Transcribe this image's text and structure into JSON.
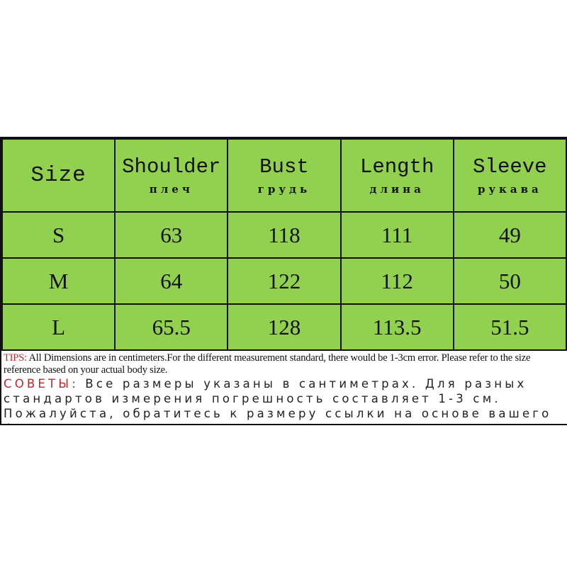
{
  "table": {
    "headers": [
      {
        "en": "Size",
        "ru": ""
      },
      {
        "en": "Shoulder",
        "ru": "плеч"
      },
      {
        "en": "Bust",
        "ru": "грудь"
      },
      {
        "en": "Length",
        "ru": "длина"
      },
      {
        "en": "Sleeve",
        "ru": "рукава"
      }
    ],
    "rows": [
      [
        "S",
        "63",
        "118",
        "111",
        "49"
      ],
      [
        "M",
        "64",
        "122",
        "112",
        "50"
      ],
      [
        "L",
        "65.5",
        "128",
        "113.5",
        "51.5"
      ]
    ],
    "header_color": "#92d050"
  },
  "tips": {
    "en_label": "TIPS:",
    "en_text": " All Dimensions are in centimeters.For the different measurement standard, there would be 1-3cm error. Please refer to the size reference based on your actual body size.",
    "ru_label": "СОВЕТЫ:",
    "ru_text": " Все размеры указаны в сантиметрах. Для разных стандартов измерения погрешность составляет 1-3 см. Пожалуйста, обратитесь к размеру ссылки на основе вашего фактического размера тела"
  }
}
